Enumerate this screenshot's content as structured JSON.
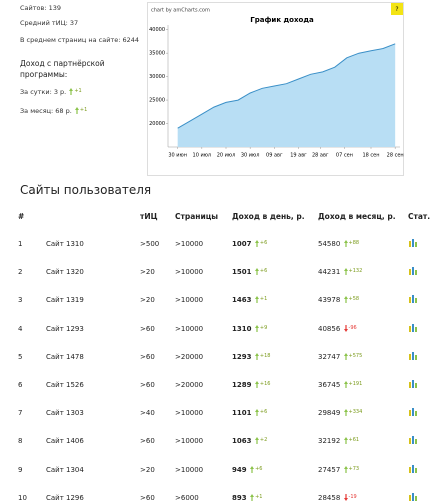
{
  "stats": {
    "sites": "Сайтов: 139",
    "tic": "Средний тИЦ: 37",
    "pages": "В среднем страниц на сайте: 6244",
    "partner": "Доход с партнёрской программы:",
    "day": "За сутки: 3 р.",
    "day_change": "+1",
    "month": "За месяц: 68 р.",
    "month_change": "+1"
  },
  "chart_data": {
    "type": "area",
    "title": "График дохода",
    "credit": "chart by amCharts.com",
    "help": "?",
    "x": [
      0,
      5,
      10,
      15,
      20,
      25,
      30,
      35,
      40,
      45,
      50,
      55,
      60,
      65,
      70,
      75,
      80,
      85,
      90
    ],
    "values": [
      19000,
      20500,
      22000,
      23500,
      24500,
      25000,
      26500,
      27500,
      28000,
      28500,
      29500,
      30500,
      31000,
      32000,
      34000,
      35000,
      35500,
      36000,
      37000
    ],
    "color": "#3a8fc7",
    "fill": "#b8def4",
    "xlim": [
      -4,
      92
    ],
    "xticks": [
      {
        "value": 0,
        "label": "30 июн"
      },
      {
        "value": 10,
        "label": "10 июл"
      },
      {
        "value": 20,
        "label": "20 июл"
      },
      {
        "value": 30,
        "label": "30 июл"
      },
      {
        "value": 40,
        "label": "09 авг"
      },
      {
        "value": 50,
        "label": "19 авг"
      },
      {
        "value": 59,
        "label": "28 авг"
      },
      {
        "value": 69,
        "label": "07 сен"
      },
      {
        "value": 80,
        "label": "18 сен"
      },
      {
        "value": 90,
        "label": "28 сен"
      }
    ],
    "ylim": [
      15000,
      41000
    ],
    "yticks": [
      20000,
      25000,
      30000,
      35000,
      40000
    ],
    "grid": false
  },
  "section_title": "Сайты пользователя",
  "table": {
    "header": [
      "#",
      "тИЦ",
      "Страницы",
      "Доход в день, р.",
      "Доход в месяц, р.",
      "Стат."
    ],
    "rows": [
      [
        "1",
        "Сайт 1310",
        ">500",
        ">10000",
        "1007",
        "+6",
        "54580",
        "+88"
      ],
      [
        "2",
        "Сайт 1320",
        ">20",
        ">10000",
        "1501",
        "+6",
        "44231",
        "+132"
      ],
      [
        "3",
        "Сайт 1319",
        ">20",
        ">10000",
        "1463",
        "+1",
        "43978",
        "+58"
      ],
      [
        "4",
        "Сайт 1293",
        ">60",
        ">10000",
        "1310",
        "+9",
        "40856",
        "-96"
      ],
      [
        "5",
        "Сайт 1478",
        ">60",
        ">20000",
        "1293",
        "+18",
        "32747",
        "+575"
      ],
      [
        "6",
        "Сайт 1526",
        ">60",
        ">20000",
        "1289",
        "+16",
        "36745",
        "+191"
      ],
      [
        "7",
        "Сайт 1303",
        ">40",
        ">10000",
        "1101",
        "+6",
        "29849",
        "+334"
      ],
      [
        "8",
        "Сайт 1406",
        ">60",
        ">10000",
        "1063",
        "+2",
        "32192",
        "+61"
      ],
      [
        "9",
        "Сайт 1304",
        ">20",
        ">10000",
        "949",
        "+6",
        "27457",
        "+73"
      ],
      [
        "10",
        "Сайт 1296",
        ">60",
        ">6000",
        "893",
        "+1",
        "28458",
        "-19"
      ]
    ]
  }
}
